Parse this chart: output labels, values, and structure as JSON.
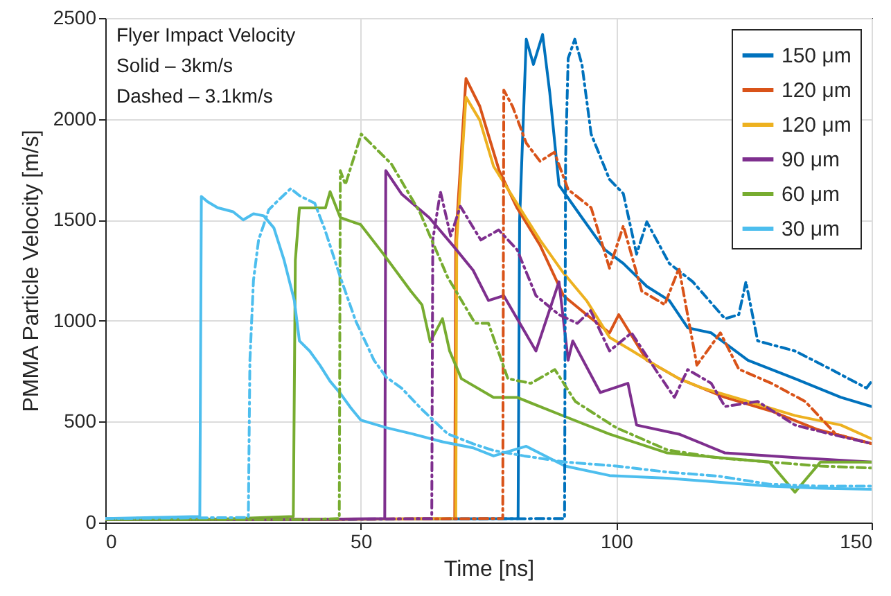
{
  "chart_data": {
    "type": "line",
    "xlabel": "Time [ns]",
    "ylabel": "PMMA Particle Velocity [m/s]",
    "annotations": [
      "Flyer Impact Velocity",
      "Solid – 3km/s",
      "Dashed – 3.1km/s"
    ],
    "xlim": [
      0,
      150
    ],
    "ylim": [
      0,
      2500
    ],
    "xticks": [
      0,
      50,
      100,
      150
    ],
    "yticks": [
      0,
      500,
      1000,
      1500,
      2000,
      2500
    ],
    "grid": true,
    "legend": "top right",
    "marker": "none",
    "series": [
      {
        "name": "150 μm",
        "color": "#0072bd",
        "line_style": "solid",
        "x": [
          0,
          40,
          80.8,
          81.1,
          82.4,
          83.8,
          85.6,
          87,
          88.8,
          93.3,
          97.8,
          101.4,
          106,
          110.4,
          114,
          118.6,
          125.8,
          135,
          144,
          150
        ],
        "values": [
          15,
          15,
          20,
          1500,
          2395,
          2270,
          2418,
          2131,
          1672,
          1511,
          1352,
          1284,
          1170,
          1100,
          965,
          940,
          804,
          713,
          620,
          575
        ]
      },
      {
        "name": "120 μm",
        "color": "#d95319",
        "line_style": "solid",
        "x": [
          0,
          40,
          68.4,
          68.6,
          70.6,
          73.3,
          74.4,
          77.1,
          80.6,
          85.1,
          89.7,
          94.2,
          98.7,
          100.5,
          106,
          112.3,
          121.3,
          130.4,
          139.5,
          150
        ],
        "values": [
          15,
          15,
          20,
          1400,
          2200,
          2063,
          1970,
          1744,
          1559,
          1374,
          1124,
          1030,
          940,
          1030,
          804,
          713,
          620,
          552,
          460,
          391
        ]
      },
      {
        "name": "120 μm",
        "color": "#edb120",
        "line_style": "solid",
        "x": [
          0,
          40,
          68.6,
          68.8,
          70.6,
          73.3,
          76,
          80.6,
          85.1,
          89.7,
          94.2,
          98.7,
          103.2,
          107.7,
          112.3,
          116.8,
          125.8,
          135,
          144,
          150
        ],
        "values": [
          15,
          15,
          20,
          1400,
          2108,
          1994,
          1765,
          1580,
          1400,
          1236,
          1100,
          918,
          850,
          780,
          713,
          667,
          600,
          530,
          483,
          415
        ]
      },
      {
        "name": "90 μm",
        "color": "#7e2f8e",
        "line_style": "solid",
        "x": [
          0,
          40,
          54.7,
          54.9,
          58,
          63.4,
          68,
          72,
          75,
          78,
          84.3,
          88.8,
          90.6,
          91.5,
          96.9,
          102.3,
          104,
          112.3,
          121.3,
          135,
          150
        ],
        "values": [
          15,
          15,
          20,
          1744,
          1628,
          1511,
          1374,
          1250,
          1100,
          1124,
          850,
          1193,
          804,
          900,
          644,
          690,
          483,
          438,
          345,
          322,
          300
        ]
      },
      {
        "name": "60 μm",
        "color": "#77ac30",
        "line_style": "solid",
        "x": [
          0,
          20,
          36.8,
          37.2,
          38,
          43.1,
          44,
          46,
          50,
          54.4,
          59.8,
          62,
          63.6,
          66,
          67.4,
          69.7,
          76,
          80.6,
          89.7,
          98.7,
          110,
          120,
          130,
          135,
          140,
          150
        ],
        "values": [
          15,
          15,
          30,
          1300,
          1559,
          1559,
          1640,
          1511,
          1476,
          1332,
          1147,
          1078,
          895,
          1010,
          850,
          713,
          620,
          620,
          528,
          438,
          345,
          322,
          300,
          150,
          300,
          300
        ]
      },
      {
        "name": "30 μm",
        "color": "#4dbeee",
        "line_style": "solid",
        "x": [
          0,
          18.5,
          18.8,
          20,
          22,
          25,
          27,
          29,
          31,
          33,
          35,
          37,
          38,
          40,
          42,
          44,
          46,
          48,
          50,
          55,
          60,
          66,
          72,
          76,
          82.4,
          90,
          98.7,
          110,
          120,
          130,
          140,
          150
        ],
        "values": [
          20,
          30,
          1616,
          1590,
          1560,
          1540,
          1500,
          1530,
          1520,
          1460,
          1300,
          1100,
          900,
          850,
          780,
          700,
          640,
          570,
          508,
          470,
          440,
          400,
          370,
          330,
          378,
          280,
          233,
          220,
          200,
          180,
          170,
          165
        ]
      },
      {
        "color": "#0072bd",
        "line_style": "dashed",
        "x": [
          0,
          40,
          89.9,
          90.1,
          90.6,
          91.9,
          93.3,
          95.1,
          98.7,
          101.4,
          104,
          106,
          110.4,
          115,
          121.3,
          124,
          125.4,
          127.7,
          135,
          142,
          149,
          150
        ],
        "values": [
          15,
          15,
          20,
          1800,
          2300,
          2395,
          2270,
          1925,
          1700,
          1630,
          1330,
          1490,
          1284,
          1193,
          1010,
          1030,
          1193,
          900,
          850,
          760,
          666,
          700
        ]
      },
      {
        "color": "#d95319",
        "line_style": "dashed",
        "x": [
          0,
          40,
          77.8,
          78,
          79.7,
          82.4,
          85.1,
          87.9,
          90.6,
          95.1,
          98.7,
          101.4,
          105,
          109.5,
          112.3,
          115.8,
          120.4,
          124,
          130.4,
          137,
          143,
          150
        ],
        "values": [
          15,
          15,
          20,
          2143,
          2063,
          1880,
          1790,
          1835,
          1650,
          1560,
          1260,
          1470,
          1147,
          1080,
          1260,
          780,
          940,
          760,
          690,
          600,
          438,
          391
        ]
      },
      {
        "color": "#7e2f8e",
        "line_style": "dashed",
        "x": [
          0,
          40,
          63.9,
          64.1,
          65.6,
          67.6,
          69.5,
          73.5,
          77,
          80.6,
          84.3,
          88.8,
          92.4,
          95,
          98.7,
          103,
          107.7,
          111.4,
          114,
          118.6,
          121.3,
          127.7,
          135,
          142,
          150
        ],
        "values": [
          15,
          15,
          20,
          1400,
          1640,
          1420,
          1567,
          1400,
          1450,
          1352,
          1124,
          1030,
          987,
          1050,
          850,
          940,
          758,
          620,
          758,
          690,
          575,
          600,
          483,
          438,
          391
        ]
      },
      {
        "color": "#77ac30",
        "line_style": "dashed",
        "x": [
          0,
          40,
          45.8,
          46,
          47,
          50.1,
          56,
          61.6,
          67,
          72.4,
          75,
          78.8,
          83.3,
          88,
          92,
          100,
          110,
          120,
          130,
          140,
          150
        ],
        "values": [
          15,
          15,
          20,
          1744,
          1675,
          1925,
          1777,
          1536,
          1216,
          987,
          987,
          713,
          690,
          758,
          600,
          470,
          360,
          320,
          300,
          280,
          270
        ]
      },
      {
        "color": "#4dbeee",
        "line_style": "dashed",
        "x": [
          0,
          27.8,
          28,
          28.3,
          29,
          30,
          32,
          34,
          36.3,
          38,
          41,
          43,
          46,
          49,
          52.6,
          55,
          58,
          62,
          67,
          72,
          76,
          82,
          90,
          100,
          110,
          120,
          130,
          140,
          150
        ],
        "values": [
          20,
          25,
          30,
          800,
          1200,
          1400,
          1550,
          1600,
          1655,
          1620,
          1582,
          1450,
          1216,
          1000,
          804,
          720,
          666,
          560,
          440,
          390,
          357,
          330,
          300,
          280,
          250,
          230,
          190,
          180,
          180
        ]
      }
    ]
  }
}
